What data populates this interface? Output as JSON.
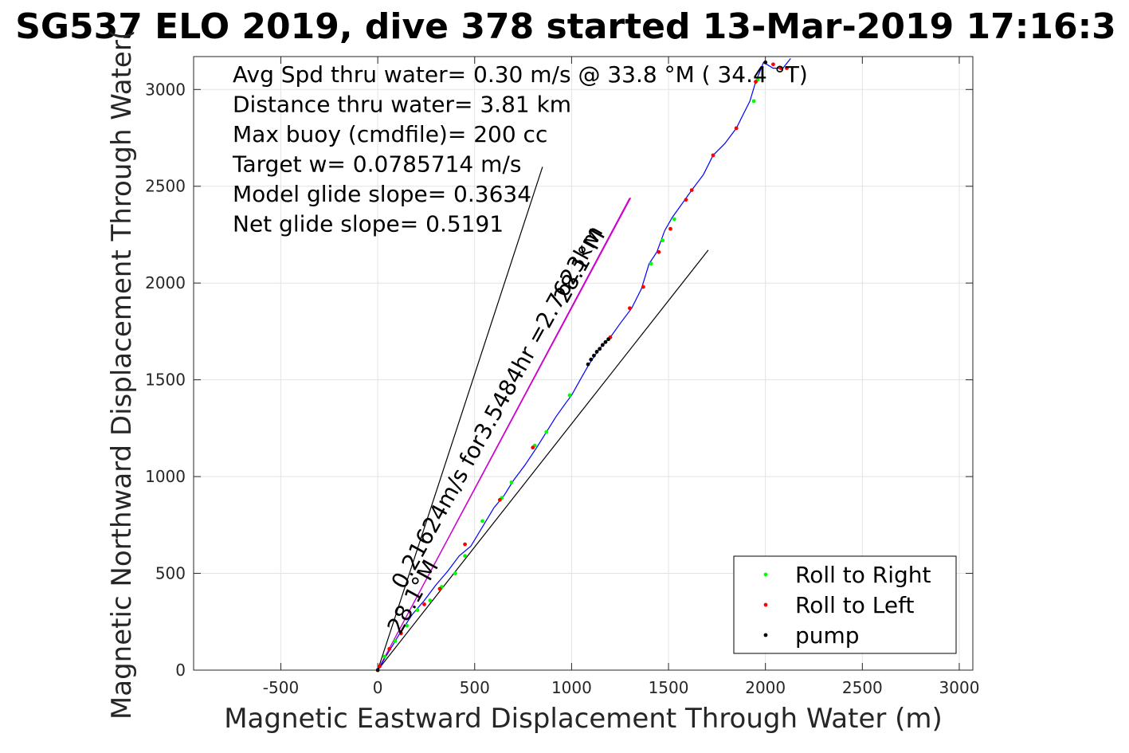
{
  "chart_data": {
    "type": "scatter",
    "title": "SG537 ELO 2019, dive 378 started 13-Mar-2019 17:16:3",
    "xlabel": "Magnetic Eastward Displacement Through Water (m)",
    "ylabel": "Magnetic Northward Displacement Through Water(",
    "xlim": [
      -950,
      3070
    ],
    "ylim": [
      0,
      3170
    ],
    "xticks": [
      -500,
      0,
      500,
      1000,
      1500,
      2000,
      2500,
      3000
    ],
    "yticks": [
      0,
      500,
      1000,
      1500,
      2000,
      2500,
      3000
    ],
    "grid": true,
    "legend_position": "bottom-right",
    "info_lines": [
      "Avg Spd thru water=  0.30 m/s @  33.8 °M ( 34.4 °T)",
      "Distance thru water=  3.81 km",
      "Max buoy (cmdfile)= 200 cc",
      "Target w= 0.0785714 m/s",
      "Model glide slope= 0.3634",
      "Net glide slope= 0.5191"
    ],
    "track": {
      "color": "#0000ff",
      "x": [
        0,
        60,
        120,
        180,
        240,
        300,
        360,
        420,
        480,
        540,
        600,
        650,
        700,
        760,
        820,
        870,
        920,
        970,
        1000,
        1050,
        1090,
        1130,
        1160,
        1200,
        1250,
        1310,
        1360,
        1400,
        1440,
        1480,
        1520,
        1570,
        1620,
        1680,
        1730,
        1790,
        1850,
        1890,
        1920,
        1950,
        1990,
        2040,
        2090,
        2130
      ],
      "y": [
        0,
        100,
        200,
        290,
        360,
        440,
        510,
        590,
        640,
        740,
        840,
        900,
        980,
        1060,
        1150,
        1230,
        1310,
        1380,
        1420,
        1510,
        1580,
        1640,
        1680,
        1720,
        1790,
        1870,
        1970,
        2100,
        2160,
        2270,
        2340,
        2410,
        2480,
        2560,
        2660,
        2720,
        2800,
        2880,
        2940,
        3040,
        3140,
        3110,
        3110,
        3160
      ]
    },
    "series": [
      {
        "name": "Roll to Right",
        "color": "#00ff00",
        "x": [
          35,
          90,
          150,
          205,
          270,
          330,
          400,
          450,
          540,
          640,
          690,
          810,
          870,
          990,
          1410,
          1470,
          1530,
          1940,
          1960
        ],
        "y": [
          70,
          150,
          230,
          310,
          360,
          430,
          500,
          590,
          770,
          890,
          970,
          1160,
          1230,
          1420,
          2100,
          2220,
          2330,
          2940,
          3050
        ]
      },
      {
        "name": "Roll to Left",
        "color": "#ff0000",
        "x": [
          10,
          60,
          120,
          240,
          320,
          450,
          630,
          800,
          1200,
          1300,
          1370,
          1450,
          1510,
          1590,
          1620,
          1730,
          1850,
          1950,
          2040,
          2080,
          2110
        ],
        "y": [
          20,
          110,
          190,
          340,
          420,
          650,
          880,
          1150,
          1720,
          1870,
          1980,
          2160,
          2280,
          2430,
          2480,
          2660,
          2800,
          3040,
          3130,
          3110,
          3110
        ]
      },
      {
        "name": "pump",
        "color": "#000000",
        "x": [
          0,
          1085,
          1100,
          1115,
          1130,
          1145,
          1160,
          1175,
          1190,
          2000
        ],
        "y": [
          0,
          1580,
          1605,
          1625,
          1645,
          1660,
          1680,
          1695,
          1710,
          3140
        ]
      }
    ],
    "reference_lines": [
      {
        "color": "#000000",
        "x": [
          0,
          850
        ],
        "y": [
          0,
          2600
        ]
      },
      {
        "color": "#000000",
        "x": [
          0,
          1705
        ],
        "y": [
          0,
          2170
        ]
      },
      {
        "color": "#cc00cc",
        "x": [
          0,
          1305
        ],
        "y": [
          0,
          2440
        ]
      },
      {
        "color": "#cc00cc",
        "x": [
          0,
          1300
        ],
        "y": [
          0,
          2440
        ]
      }
    ],
    "annotations": [
      {
        "text": "0.21624m/s for3.5484hr =2.7623km",
        "x": 650,
        "y": 1340,
        "angle": 61
      },
      {
        "text": "28.1°M",
        "x": 1075,
        "y": 2070,
        "angle": 61
      },
      {
        "text": "28.1°M",
        "x": 215,
        "y": 360,
        "angle": 61
      }
    ]
  }
}
